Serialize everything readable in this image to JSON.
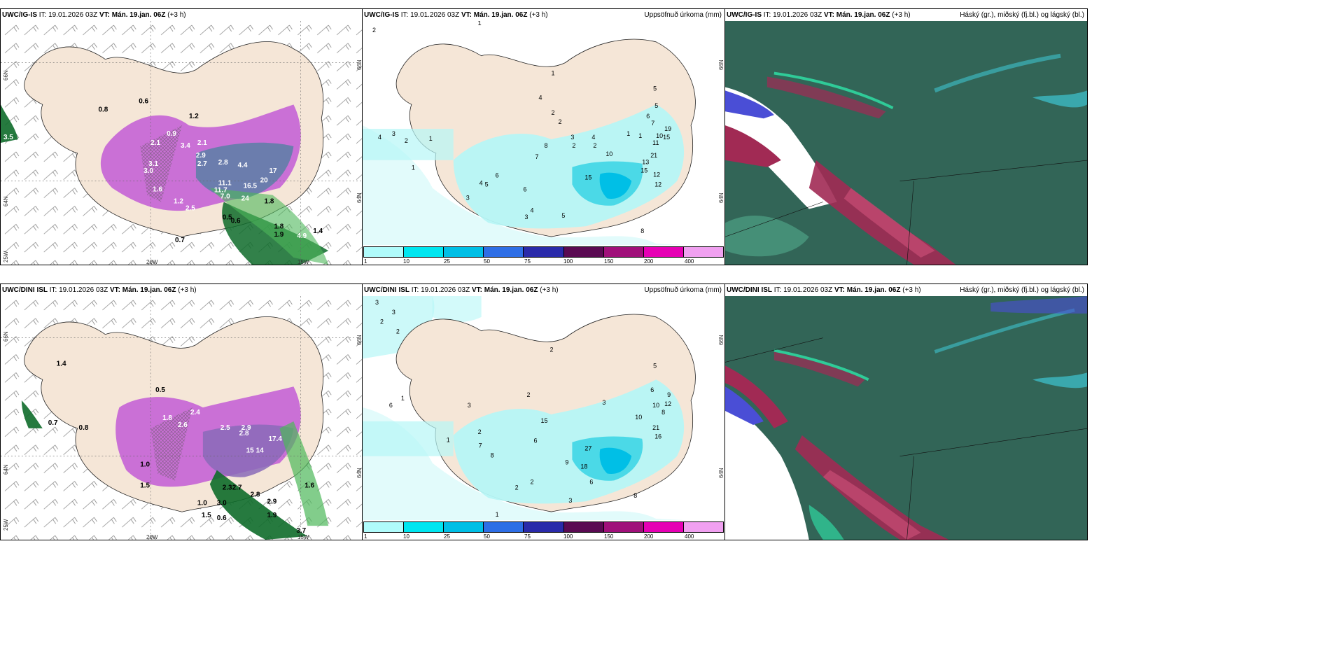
{
  "panels": [
    {
      "id": "r1c1",
      "model": "UWC/IG-IS",
      "it_label": "IT:",
      "it_value": "19.01.2026 03Z",
      "vt_label": "VT:",
      "vt_value": "Mán. 19.jan. 06Z",
      "lead": "(+3 h)",
      "title_right": "",
      "axis_labels": [
        "66N",
        "64N",
        "25W",
        "20W",
        "15W",
        "66N",
        "64N"
      ],
      "values": [
        "0.6",
        "0.8",
        "1.2",
        "2.1",
        "3.4",
        "2.1",
        "0.9",
        "3.1",
        "3.0",
        "2.9",
        "2.7",
        "2.8",
        "4.4",
        "11.1",
        "11.7",
        "17",
        "20",
        "16.5",
        "24",
        "7.0",
        "2.5",
        "1.8",
        "1.2",
        "1.6",
        "0.5",
        "0.6",
        "1.8",
        "1.9",
        "4.9",
        "1.4",
        "3.5",
        "0.7"
      ]
    },
    {
      "id": "r1c2",
      "model": "UWC/IG-IS",
      "it_label": "IT:",
      "it_value": "19.01.2026 03Z",
      "vt_label": "VT:",
      "vt_value": "Mán. 19.jan. 06Z",
      "lead": "(+3 h)",
      "title_right": "Uppsöfnuð úrkoma (mm)",
      "axis_labels": [
        "66N",
        "64N"
      ],
      "values": [
        "2",
        "1",
        "4",
        "3",
        "2",
        "1",
        "1",
        "1",
        "2",
        "3",
        "4",
        "5",
        "6",
        "7",
        "8",
        "2",
        "4",
        "2",
        "10",
        "15",
        "12",
        "13",
        "15",
        "11",
        "10",
        "21",
        "12",
        "19",
        "15",
        "7",
        "6",
        "5",
        "4",
        "3",
        "2",
        "1",
        "1",
        "5",
        "6",
        "4",
        "3",
        "5",
        "8"
      ]
    },
    {
      "id": "r1c3",
      "model": "UWC/IG-IS",
      "it_label": "IT:",
      "it_value": "19.01.2026 03Z",
      "vt_label": "VT:",
      "vt_value": "Mán. 19.jan. 06Z",
      "lead": "(+3 h)",
      "title_right": "Háský (gr.), miðský (fj.bl.) og lágský (bl.)",
      "axis_labels": [],
      "values": []
    },
    {
      "id": "r2c1",
      "model": "UWC/DINI ISL",
      "it_label": "IT:",
      "it_value": "19.01.2026 03Z",
      "vt_label": "VT:",
      "vt_value": "Mán. 19.jan. 06Z",
      "lead": "(+3 h)",
      "title_right": "",
      "axis_labels": [
        "66N",
        "64N",
        "25W",
        "20W",
        "15W",
        "66N",
        "64N"
      ],
      "values": [
        "1.4",
        "0.5",
        "1.8",
        "2.6",
        "2.4",
        "2.5",
        "2.9",
        "2.8",
        "1.0",
        "1.5",
        "0.7",
        "0.8",
        "15",
        "14",
        "17.4",
        "2.3",
        "2.7",
        "2.8",
        "2.9",
        "1.9",
        "3.7",
        "1.6",
        "1.0",
        "0.6",
        "1.5",
        "3.0"
      ]
    },
    {
      "id": "r2c2",
      "model": "UWC/DINI ISL",
      "it_label": "IT:",
      "it_value": "19.01.2026 03Z",
      "vt_label": "VT:",
      "vt_value": "Mán. 19.jan. 06Z",
      "lead": "(+3 h)",
      "title_right": "Uppsöfnuð úrkoma (mm)",
      "axis_labels": [
        "66N",
        "64N"
      ],
      "values": [
        "3",
        "3",
        "2",
        "2",
        "1",
        "6",
        "1",
        "2",
        "3",
        "2",
        "8",
        "7",
        "9",
        "6",
        "15",
        "27",
        "18",
        "10",
        "12",
        "21",
        "16",
        "6",
        "9",
        "10",
        "8",
        "2",
        "3",
        "5",
        "2",
        "1",
        "2",
        "3",
        "6",
        "8"
      ]
    },
    {
      "id": "r2c3",
      "model": "UWC/DINI ISL",
      "it_label": "IT:",
      "it_value": "19.01.2026 03Z",
      "vt_label": "VT:",
      "vt_value": "Mán. 19.jan. 06Z",
      "lead": "(+3 h)",
      "title_right": "Háský (gr.), miðský (fj.bl.) og lágský (bl.)",
      "axis_labels": [],
      "values": []
    }
  ],
  "precip_legend": {
    "ticks": [
      "1",
      "10",
      "25",
      "50",
      "75",
      "100",
      "150",
      "200",
      "400"
    ],
    "colors": [
      "#b0fbfb",
      "#00e6f0",
      "#00bfe6",
      "#2e6ee6",
      "#2a2aaa",
      "#5a0a52",
      "#a0107a",
      "#e600b4",
      "#f0a0f0"
    ]
  },
  "colors": {
    "land": "#f5e6d7",
    "green1": "#a8f0a0",
    "green2": "#4db85a",
    "green3": "#0e6b2a",
    "magenta": "#c25ad6",
    "purple": "#8a6ab8",
    "slate": "#5b7fa6",
    "cyan_light": "#b6f6f6",
    "cyan": "#3fd6e6",
    "cloud_dark": "#2f5f52",
    "cloud_mid": "#3d7a68",
    "cloud_red": "#a12a54",
    "cloud_blue": "#4a4ed6",
    "cloud_teal": "#2fd6a0"
  }
}
